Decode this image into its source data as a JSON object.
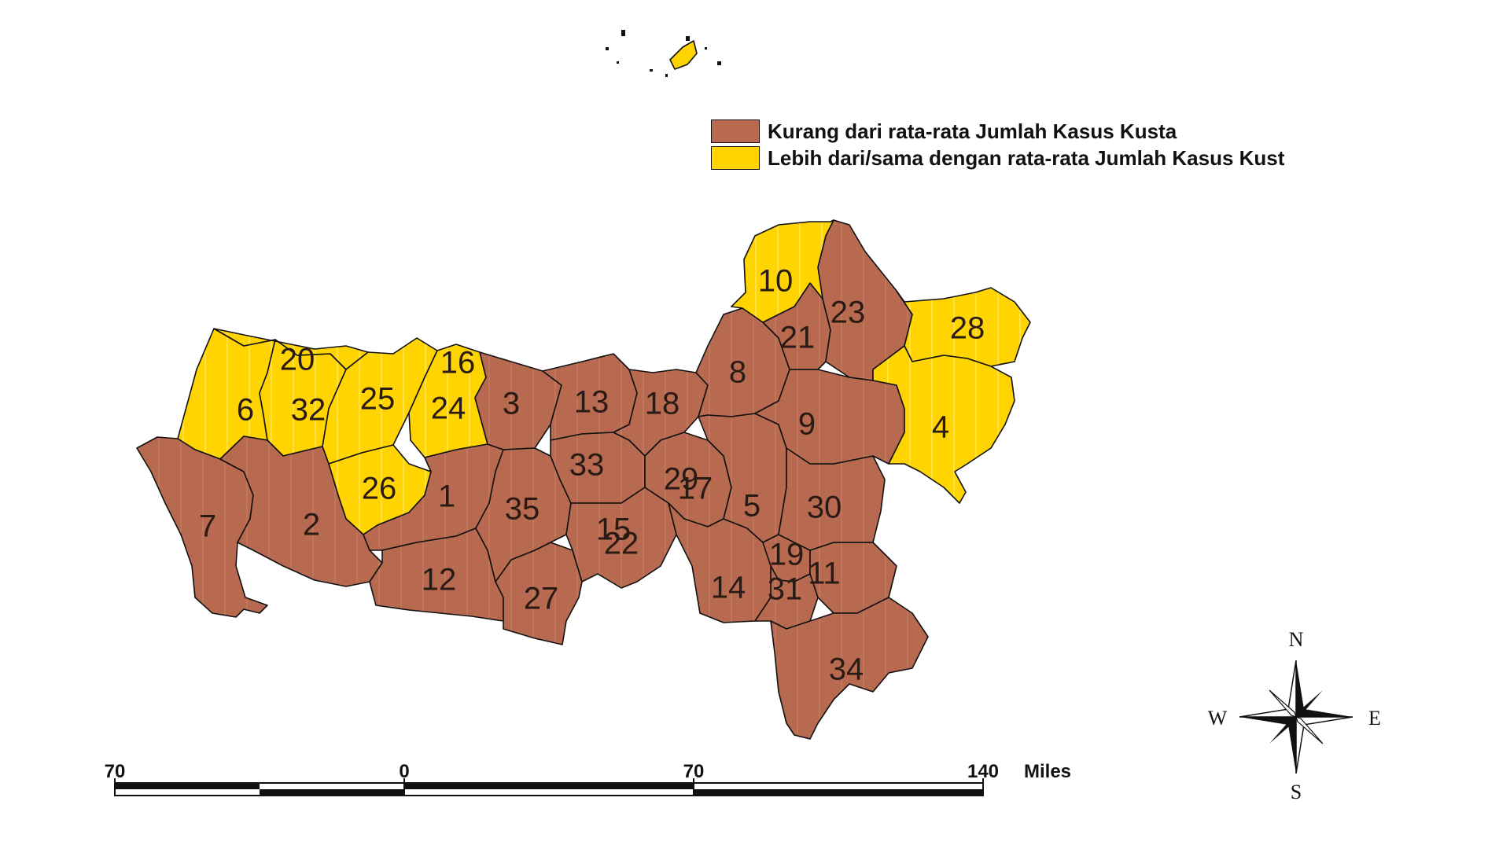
{
  "legend": {
    "items": [
      {
        "label": "Kurang dari rata-rata Jumlah Kasus Kusta",
        "color": "#B86A50"
      },
      {
        "label": "Lebih dari/sama dengan rata-rata Jumlah Kasus Kust",
        "color": "#FFD400"
      }
    ]
  },
  "regions": {
    "r1": "1",
    "r2": "2",
    "r3": "3",
    "r4": "4",
    "r5": "5",
    "r6": "6",
    "r7": "7",
    "r8": "8",
    "r9": "9",
    "r10": "10",
    "r11": "11",
    "r12": "12",
    "r13": "13",
    "r14": "14",
    "r15": "15",
    "r16": "16",
    "r17": "17",
    "r18": "18",
    "r19": "19",
    "r20": "20",
    "r21": "21",
    "r22": "22",
    "r23": "23",
    "r24": "24",
    "r25": "25",
    "r26": "26",
    "r27": "27",
    "r28": "28",
    "r29": "29",
    "r30": "30",
    "r31": "31",
    "r32": "32",
    "r33": "33",
    "r34": "34",
    "r35": "35"
  },
  "scale_bar": {
    "labels": [
      "70",
      "0",
      "70",
      "140"
    ],
    "unit": "Miles"
  },
  "compass": {
    "n": "N",
    "e": "E",
    "s": "S",
    "w": "W"
  }
}
